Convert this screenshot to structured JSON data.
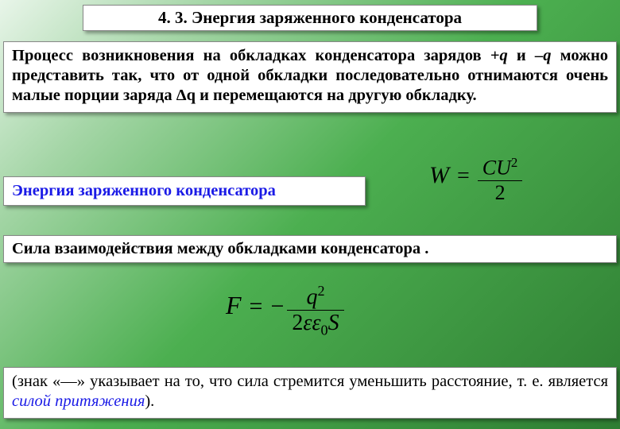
{
  "title": "4. 3. Энергия заряженного конденсатора",
  "paragraph": {
    "prefix": "Процесс возникновения на обкладках конденсатора зарядов ",
    "plus_q": "+q",
    "mid1": " и ",
    "minus_q": "–q",
    "rest": " можно представить так, что от одной обкладки последовательно отнимаются очень малые порции заряда Δq и перемещаются на другую обкладку."
  },
  "energy_label": "Энергия заряженного конденсатора",
  "formula_W": {
    "lhs": "W",
    "num_C": "C",
    "num_U": "U",
    "num_exp": "2",
    "den": "2"
  },
  "force_line": "Сила взаимодействия между обкладками конденсатора  .",
  "formula_F": {
    "lhs": "F",
    "num_q": "q",
    "num_exp": "2",
    "den_2": "2",
    "den_eps": "ε",
    "den_eps0": "ε",
    "den_sub0": "0",
    "den_S": "S"
  },
  "note": {
    "prefix": "(знак «—» указывает на то, что сила стремится уменьшить расстояние, т. е. является ",
    "attraction": "силой притяжения",
    "suffix": ")."
  },
  "colors": {
    "accent_blue": "#1a1ae6",
    "bg_white": "#ffffff"
  }
}
